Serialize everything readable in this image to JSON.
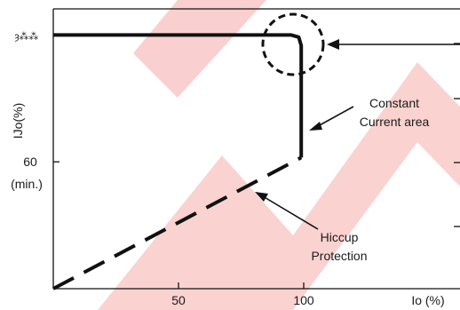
{
  "chart_data": {
    "type": "line",
    "title": "",
    "xlabel": "Io (%)",
    "ylabel": "IJo(%)",
    "xlim": [
      0,
      126
    ],
    "ylim": [
      0,
      135
    ],
    "x_ticks": [
      {
        "value": 50,
        "label": "50"
      },
      {
        "value": 100,
        "label": "100"
      }
    ],
    "y_ticks": [
      {
        "value": 60,
        "label": "60",
        "sublabel": "(min.)"
      },
      {
        "value": 120,
        "label": "ȝ⁂⁂"
      }
    ],
    "series": [
      {
        "style": "solid",
        "x": [
          0,
          95,
          98,
          99,
          99
        ],
        "y": [
          120,
          120,
          119,
          115,
          62
        ]
      },
      {
        "style": "dashed",
        "x": [
          0,
          99
        ],
        "y": [
          0,
          62
        ]
      }
    ],
    "annotations": [
      {
        "text_lines": [
          "Constant",
          "Current area"
        ]
      },
      {
        "text_lines": [
          "Hiccup",
          "Protection"
        ]
      }
    ],
    "watermark_color": "#e8302a"
  }
}
